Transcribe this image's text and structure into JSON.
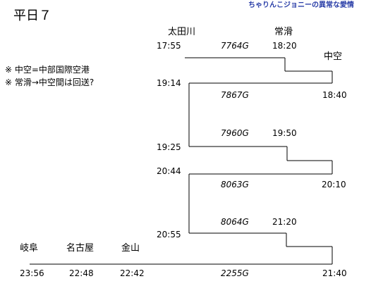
{
  "title": "平日７",
  "credit": "ちゃりんこジョニーの異常な愛情",
  "notes": [
    "※ 中空=中部国際空港",
    "※ 常滑→中空間は回送?"
  ],
  "stations": {
    "ota": "太田川",
    "tokoname": "常滑",
    "chuku": "中空",
    "gifu": "岐阜",
    "nagoya": "名古屋",
    "kanayama": "金山"
  },
  "trains": [
    {
      "id": "7764G",
      "times": [
        "17:55",
        "18:20"
      ]
    },
    {
      "id": "7867G",
      "times": [
        "19:14",
        "18:40"
      ]
    },
    {
      "id": "7960G",
      "times": [
        "19:25",
        "19:50"
      ]
    },
    {
      "id": "8063G",
      "times": [
        "20:44",
        "20:10"
      ]
    },
    {
      "id": "8064G",
      "times": [
        "20:55",
        "21:20"
      ]
    },
    {
      "id": "2255G",
      "times": [
        "23:56",
        "22:48",
        "22:42",
        "21:40"
      ]
    }
  ]
}
